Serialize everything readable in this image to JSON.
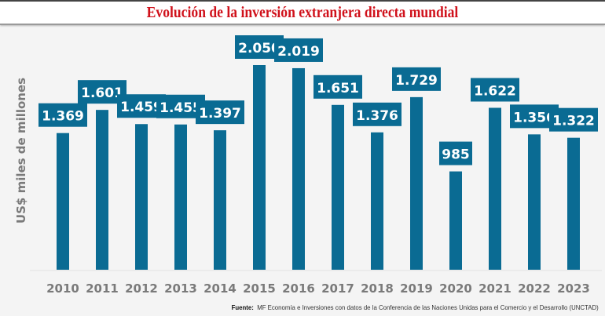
{
  "title": "Evolución de la inversión extranjera directa mundial",
  "source_label": "Fuente:",
  "source_text": "MF Economía e Inversiones con datos de la Conferencia de las Naciones Unidas para el Comercio y el Desarrollo (UNCTAD)",
  "colors": {
    "bar": "#0a6b93",
    "title": "#d0111b",
    "axis_text": "#7a7a7a"
  },
  "chart_data": {
    "type": "bar",
    "title": "Evolución de la inversión extranjera directa mundial",
    "xlabel": "",
    "ylabel": "US$ miles de millones",
    "categories": [
      "2010",
      "2011",
      "2012",
      "2013",
      "2014",
      "2015",
      "2016",
      "2017",
      "2018",
      "2019",
      "2020",
      "2021",
      "2022",
      "2023"
    ],
    "values": [
      1369,
      1601,
      1459,
      1455,
      1397,
      2050,
      2019,
      1651,
      1376,
      1729,
      985,
      1622,
      1356,
      1322
    ],
    "value_labels": [
      "1.369",
      "1.601",
      "1.459",
      "1.455",
      "1.397",
      "2.050",
      "2.019",
      "1.651",
      "1.376",
      "1.729",
      "985",
      "1.622",
      "1.356",
      "1.322"
    ],
    "ylim": [
      0,
      2050
    ],
    "grid": false,
    "legend": "none"
  }
}
